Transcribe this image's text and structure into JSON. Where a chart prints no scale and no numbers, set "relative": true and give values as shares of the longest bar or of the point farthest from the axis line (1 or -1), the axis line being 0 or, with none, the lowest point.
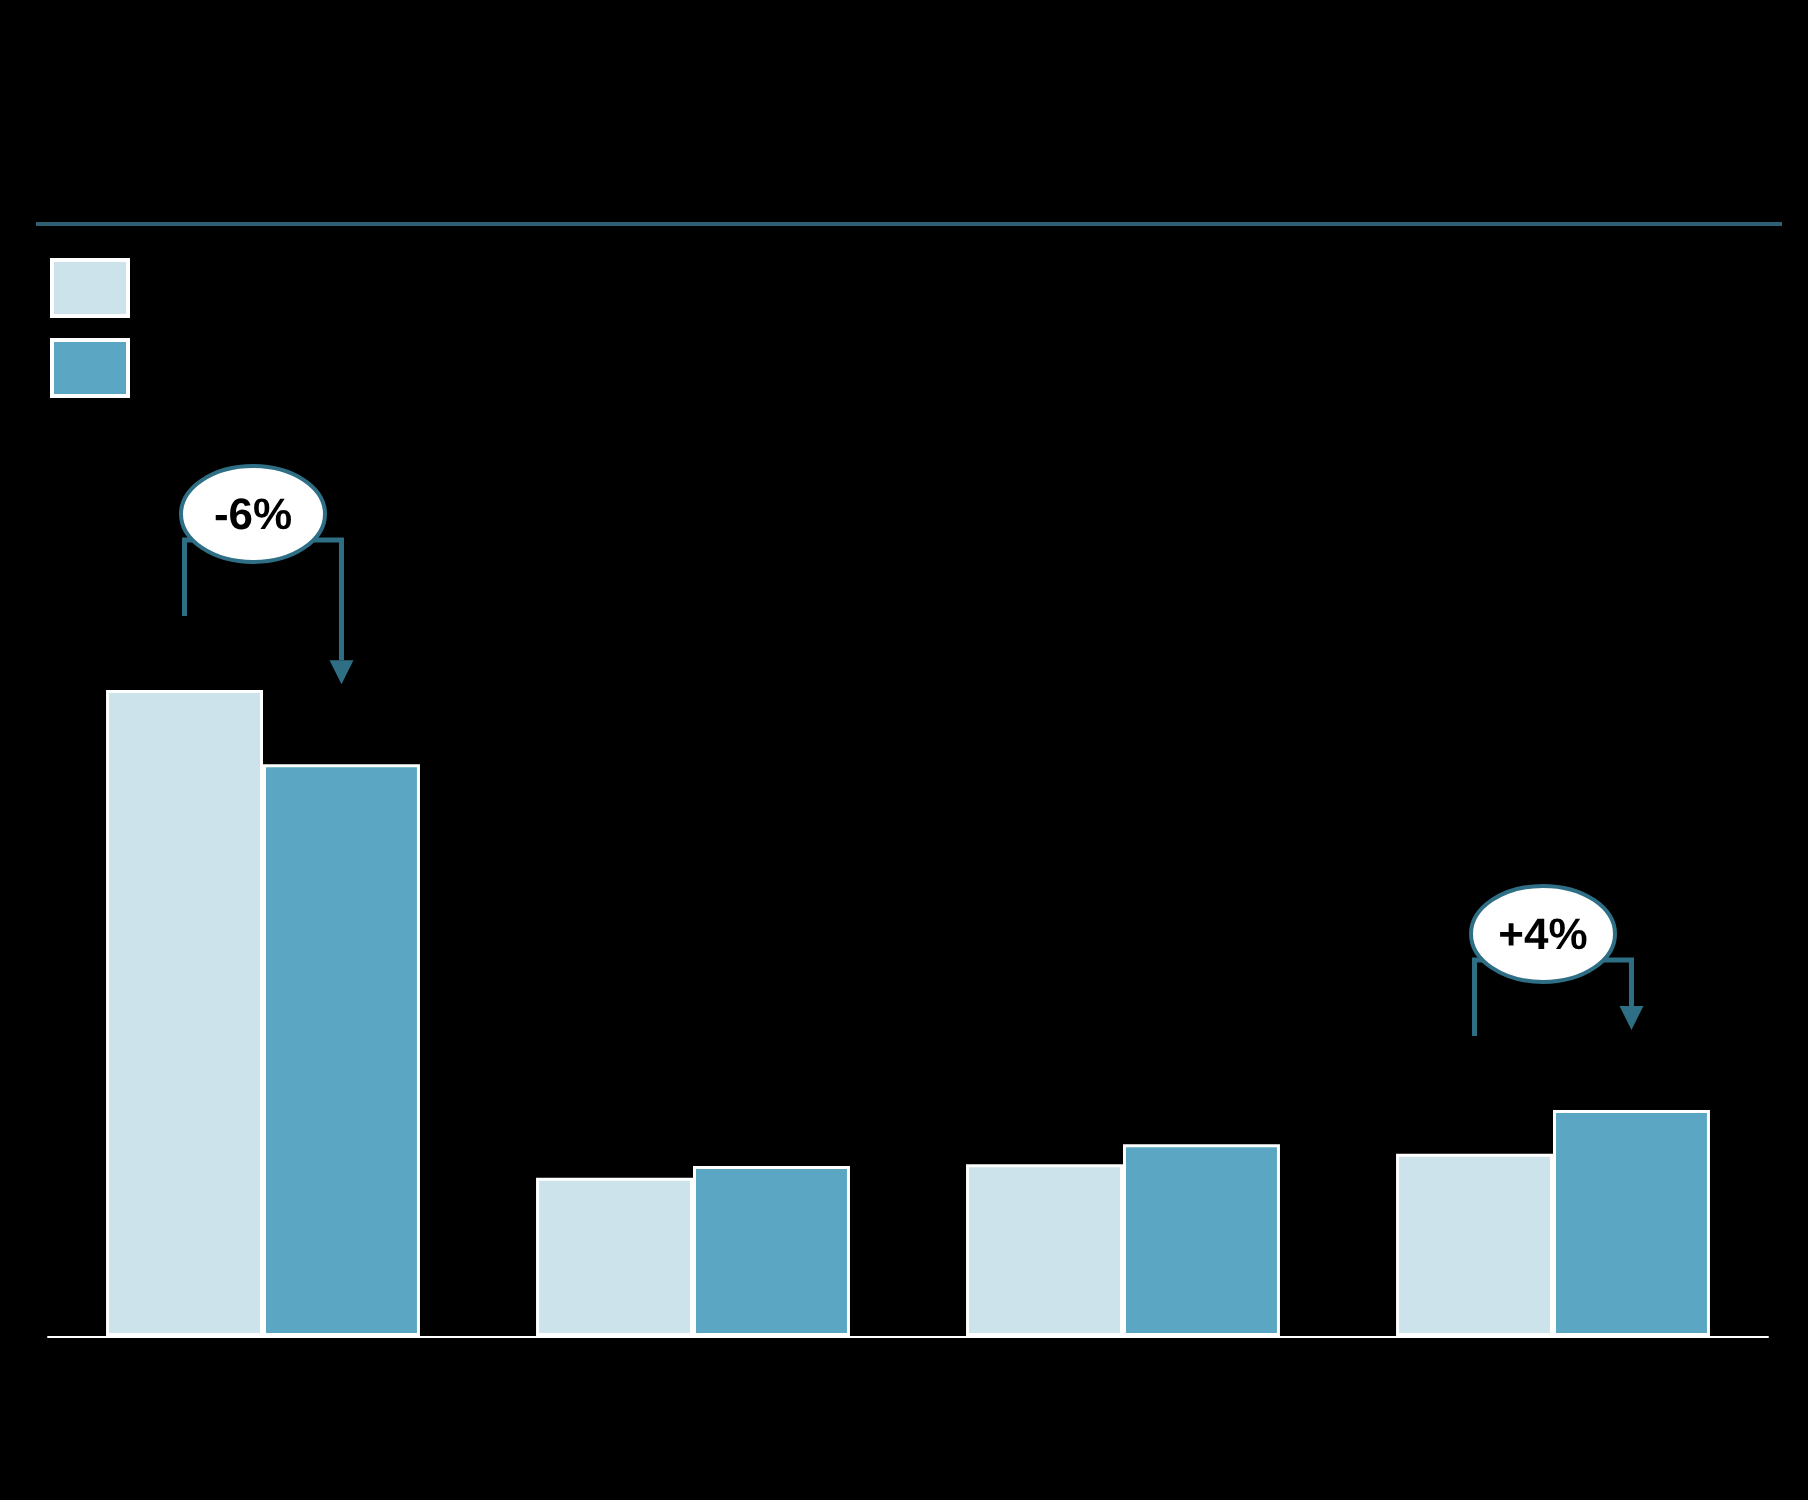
{
  "chart_data": {
    "type": "bar",
    "relative": true,
    "categories": [
      null,
      null,
      null,
      null
    ],
    "series": [
      {
        "color": "#cde3eb",
        "values": [
          1,
          0.245,
          0.266,
          0.282
        ]
      },
      {
        "color": "#5ba6c2",
        "values": [
          0.885,
          0.263,
          0.297,
          0.35
        ]
      }
    ],
    "annotations": [
      "-6%",
      "+4%"
    ]
  }
}
